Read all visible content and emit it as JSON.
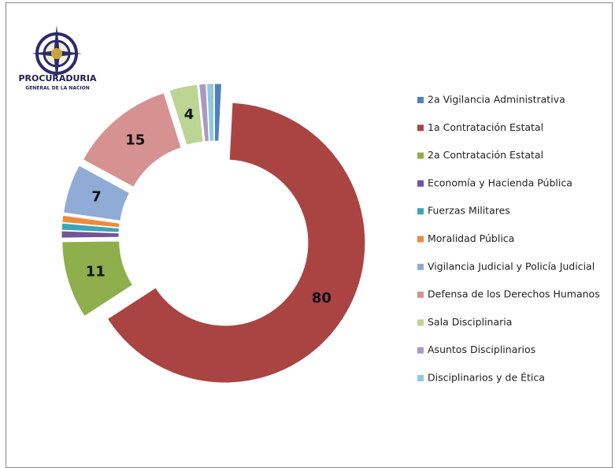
{
  "logo": {
    "title": "PROCURADURIA",
    "subtitle": "GENERAL DE LA NACION"
  },
  "chart_data": {
    "type": "donut",
    "categories": [
      "2a Vigilancia Administrativa",
      "1a Contratación Estatal",
      "2a Contratación Estatal",
      "Economía y Hacienda Pública",
      "Fuerzas Militares",
      "Moralidad Pública",
      "Vigilancia Judicial y Policía Judicial",
      "Defensa de los Derechos Humanos",
      "Sala Disciplinaria",
      "Asuntos Disciplinarios",
      "Disciplinarios y de Ética"
    ],
    "values": [
      1,
      80,
      11,
      1,
      1,
      1,
      7,
      15,
      4,
      1,
      1
    ],
    "value_labels": [
      null,
      "80",
      "11",
      null,
      null,
      null,
      "7",
      "15",
      "4",
      null,
      null
    ],
    "colors": [
      "#4f81bd",
      "#a94443",
      "#8fae4c",
      "#71549a",
      "#3aa5b8",
      "#ef8a39",
      "#8fabd6",
      "#d69290",
      "#bcd494",
      "#aa9ac2",
      "#92c8da"
    ],
    "legend": "right"
  }
}
